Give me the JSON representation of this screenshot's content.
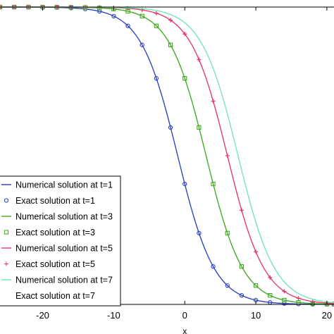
{
  "chart_data": {
    "type": "line",
    "xlabel": "x",
    "ylabel": "",
    "xlim": [
      -26,
      21
    ],
    "ylim": [
      0,
      1
    ],
    "grid": false,
    "legend_position": "left",
    "x_ticks": [
      -20,
      -10,
      0,
      10,
      20
    ],
    "x_tick_labels": [
      "-20",
      "-10",
      "0",
      "10",
      "20"
    ],
    "series": [
      {
        "name": "Numerical solution at t=1",
        "kind": "line",
        "t": 1,
        "center": -1,
        "color": "#2b3dbf"
      },
      {
        "name": "Exact solution at t=1",
        "kind": "markers",
        "marker": "circle",
        "t": 1,
        "center": -1,
        "color": "#2b3dbf"
      },
      {
        "name": "Numerical solution at t=3",
        "kind": "line",
        "t": 3,
        "center": 3,
        "color": "#3daa1c"
      },
      {
        "name": "Exact solution at t=3",
        "kind": "markers",
        "marker": "square",
        "t": 3,
        "center": 3,
        "color": "#3daa1c"
      },
      {
        "name": "Numerical solution at t=5",
        "kind": "line",
        "t": 5,
        "center": 6,
        "color": "#e8336e"
      },
      {
        "name": "Exact solution at t=5",
        "kind": "markers",
        "marker": "plus",
        "t": 5,
        "center": 6,
        "color": "#e8336e"
      },
      {
        "name": "Numerical solution at t=7",
        "kind": "line",
        "t": 7,
        "center": 7.5,
        "color": "#6fe6b0"
      },
      {
        "name": "Exact solution at t=7",
        "kind": "markers",
        "marker": "none",
        "t": 7,
        "center": 7.5,
        "color": "#6fe6b0"
      }
    ],
    "curve_width": 3.2,
    "x_samples": [
      -26,
      -24,
      -22,
      -20,
      -18,
      -16,
      -14,
      -12,
      -10,
      -8,
      -6,
      -4,
      -2,
      0,
      2,
      4,
      6,
      8,
      10,
      12,
      14,
      16,
      18,
      20,
      21
    ]
  }
}
